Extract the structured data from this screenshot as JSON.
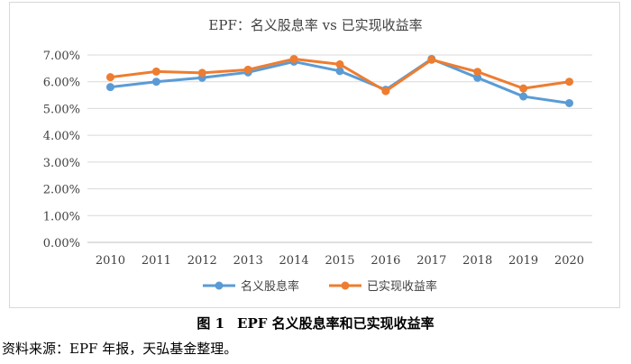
{
  "chart_data": {
    "type": "line",
    "title": "EPF：名义股息率 vs 已实现收益率",
    "categories": [
      "2010",
      "2011",
      "2012",
      "2013",
      "2014",
      "2015",
      "2016",
      "2017",
      "2018",
      "2019",
      "2020"
    ],
    "series": [
      {
        "name": "名义股息率",
        "color": "#5b9bd5",
        "values": [
          5.8,
          6.0,
          6.15,
          6.35,
          6.75,
          6.4,
          5.7,
          6.85,
          6.15,
          5.45,
          5.2
        ]
      },
      {
        "name": "已实现收益率",
        "color": "#ed7d31",
        "values": [
          6.17,
          6.38,
          6.33,
          6.45,
          6.85,
          6.65,
          5.65,
          6.82,
          6.37,
          5.75,
          6.0
        ]
      }
    ],
    "yticks": [
      "0.00%",
      "1.00%",
      "2.00%",
      "3.00%",
      "4.00%",
      "5.00%",
      "6.00%",
      "7.00%"
    ],
    "ylim": [
      0,
      7
    ],
    "grid": true,
    "legend_position": "bottom",
    "xlabel": "",
    "ylabel": ""
  },
  "caption": {
    "figure_number": "图 1",
    "text": "EPF 名义股息率和已实现收益率"
  },
  "source_note": "资料来源：EPF 年报，天弘基金整理。"
}
